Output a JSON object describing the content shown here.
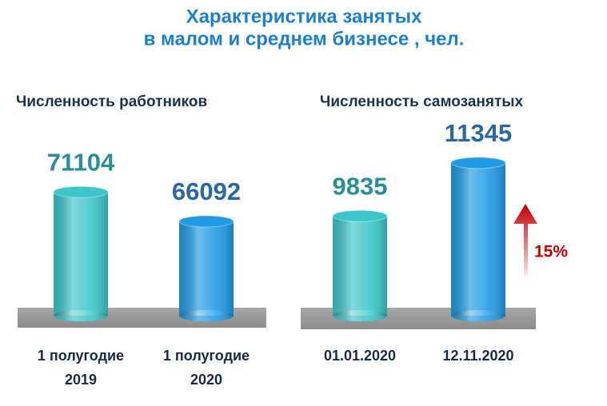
{
  "title": [
    "Характеристика занятых",
    "в малом и среднем бизнесе , чел."
  ],
  "chart_data": [
    {
      "type": "cylinder",
      "title": "Численность работников",
      "categories": [
        "1 полугодие 2019",
        "1 полугодие 2020"
      ],
      "values": [
        71104,
        66092
      ],
      "colors": [
        "#3cc6c9",
        "#1f9be3"
      ],
      "value_label_colors": [
        "#2a8f93",
        "#2b67a0"
      ],
      "ylim": [
        50000,
        74000
      ]
    },
    {
      "type": "cylinder",
      "title": "Численность самозанятых",
      "categories": [
        "01.01.2020",
        "12.11.2020"
      ],
      "values": [
        9835,
        11345
      ],
      "colors": [
        "#3cc6c9",
        "#1f9be3"
      ],
      "value_label_colors": [
        "#2a8f93",
        "#2b67a0"
      ],
      "ylim": [
        7000,
        12000
      ],
      "annotation": "15%"
    }
  ]
}
